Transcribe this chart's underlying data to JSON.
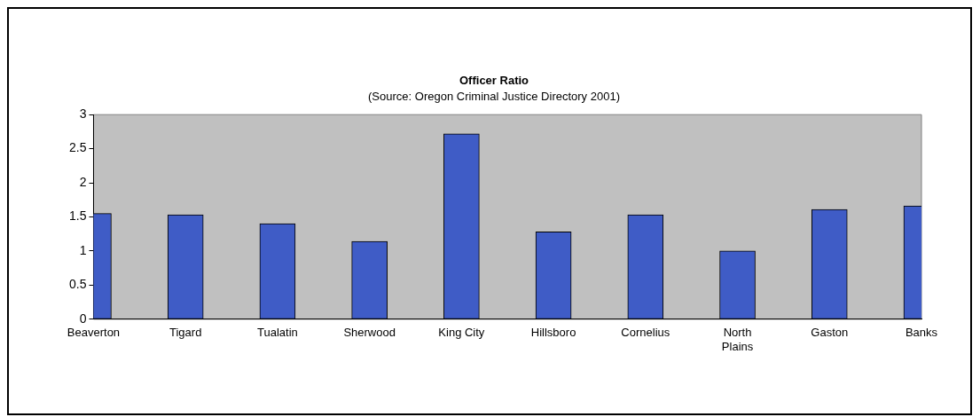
{
  "chart_data": {
    "type": "bar",
    "title": "Officer Ratio",
    "subtitle": "(Source: Oregon Criminal Justice Directory 2001)",
    "categories": [
      "Beaverton",
      "Tigard",
      "Tualatin",
      "Sherwood",
      "King City",
      "Hillsboro",
      "Cornelius",
      "North Plains",
      "Gaston",
      "Banks"
    ],
    "values": [
      1.55,
      1.53,
      1.4,
      1.14,
      2.72,
      1.28,
      1.53,
      1.0,
      1.61,
      1.66
    ],
    "color": "#3f5cc6",
    "ylim": [
      0,
      3
    ],
    "yticks": [
      0,
      0.5,
      1,
      1.5,
      2,
      2.5,
      3
    ],
    "grid": false,
    "legend": false
  }
}
